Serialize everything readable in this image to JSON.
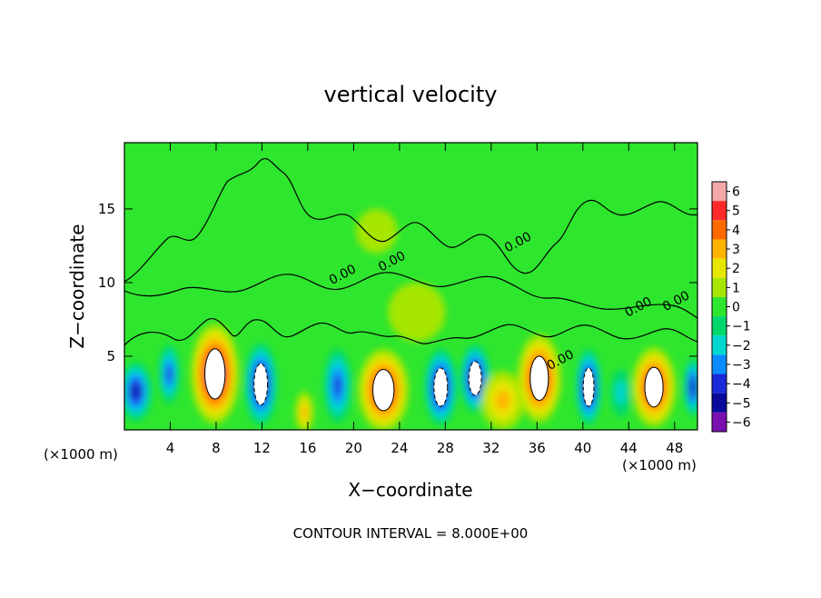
{
  "chart_data": {
    "type": "heatmap",
    "title": "vertical velocity",
    "xlabel": "X−coordinate",
    "ylabel": "Z−coordinate",
    "x_unit_label": "(×1000 m)",
    "x_unit_label_right": "(×1000 m)",
    "footer": "CONTOUR INTERVAL = 8.000E+00",
    "xlim": [
      0,
      50
    ],
    "ylim": [
      0,
      19.5
    ],
    "xticks": [
      4,
      8,
      12,
      16,
      20,
      24,
      28,
      32,
      36,
      40,
      44,
      48
    ],
    "yticks": [
      5,
      10,
      15
    ],
    "colorbar": {
      "labels": [
        "6",
        "5",
        "4",
        "3",
        "2",
        "1",
        "0",
        "−1",
        "−2",
        "−3",
        "−4",
        "−5",
        "−6"
      ],
      "colors": [
        "#f4a8a8",
        "#ff2a2a",
        "#ff6a00",
        "#ffb400",
        "#e6e600",
        "#a6e600",
        "#2ee62e",
        "#00d86e",
        "#00d8d0",
        "#0a8cff",
        "#1a2ad8",
        "#0a0a9c",
        "#7a10b0"
      ]
    },
    "contour_labels": [
      {
        "text": "0.00",
        "x": 19.2,
        "y": 10.3
      },
      {
        "text": "0.00",
        "x": 23.5,
        "y": 11.2
      },
      {
        "text": "0.00",
        "x": 34.5,
        "y": 12.5
      },
      {
        "text": "0.00",
        "x": 38.2,
        "y": 4.5
      },
      {
        "text": "0.00",
        "x": 45.0,
        "y": 8.1
      },
      {
        "text": "0.00",
        "x": 48.3,
        "y": 8.5
      }
    ],
    "cells": [
      {
        "x": 1.0,
        "z": 2.6,
        "v": -4.8,
        "rx": 1.4,
        "rz": 2.0
      },
      {
        "x": 3.9,
        "z": 3.8,
        "v": -3.8,
        "rx": 0.9,
        "rz": 2.0
      },
      {
        "x": 7.9,
        "z": 3.8,
        "v": 6.5,
        "rx": 2.1,
        "rz": 3.4
      },
      {
        "x": 11.9,
        "z": 3.1,
        "v": -5.6,
        "rx": 1.4,
        "rz": 2.8
      },
      {
        "x": 15.7,
        "z": 1.2,
        "v": 2.8,
        "rx": 0.8,
        "rz": 1.4
      },
      {
        "x": 18.6,
        "z": 3.0,
        "v": -3.6,
        "rx": 1.2,
        "rz": 2.5
      },
      {
        "x": 22.6,
        "z": 2.7,
        "v": 6.2,
        "rx": 2.2,
        "rz": 2.8
      },
      {
        "x": 27.6,
        "z": 2.9,
        "v": -5.8,
        "rx": 1.4,
        "rz": 2.6
      },
      {
        "x": 30.6,
        "z": 3.5,
        "v": -5.6,
        "rx": 1.3,
        "rz": 2.3
      },
      {
        "x": 33.0,
        "z": 2.0,
        "v": 3.0,
        "rx": 1.9,
        "rz": 2.0
      },
      {
        "x": 36.2,
        "z": 3.5,
        "v": 6.3,
        "rx": 1.9,
        "rz": 3.0
      },
      {
        "x": 40.5,
        "z": 2.9,
        "v": -5.6,
        "rx": 1.1,
        "rz": 2.6
      },
      {
        "x": 43.3,
        "z": 2.5,
        "v": -2.2,
        "rx": 0.9,
        "rz": 1.6
      },
      {
        "x": 46.2,
        "z": 2.9,
        "v": 6.1,
        "rx": 1.9,
        "rz": 2.7
      },
      {
        "x": 49.6,
        "z": 2.9,
        "v": -4.8,
        "rx": 0.8,
        "rz": 2.0
      },
      {
        "x": 25.5,
        "z": 8.0,
        "v": 0.6,
        "rx": 2.5,
        "rz": 2.0
      },
      {
        "x": 22.0,
        "z": 13.5,
        "v": 0.8,
        "rx": 1.8,
        "rz": 1.5
      }
    ]
  }
}
